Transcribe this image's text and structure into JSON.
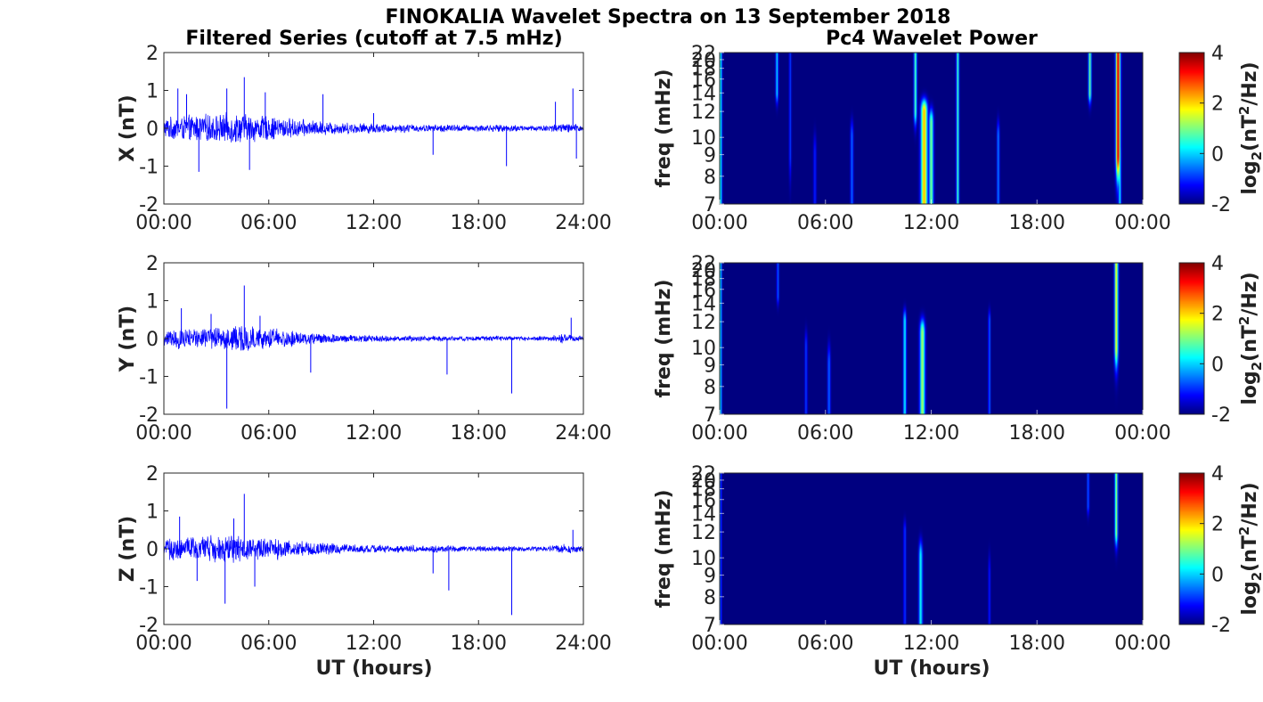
{
  "figure": {
    "title": "FINOKALIA Wavelet Spectra on 13 September 2018",
    "left_title": "Filtered Series (cutoff at 7.5 mHz)",
    "right_title": "Pc4 Wavelet Power",
    "xlabel": "UT (hours)"
  },
  "chart_data": [
    {
      "type": "line",
      "component": "X",
      "ylabel": "X (nT)",
      "ylim": [
        -2,
        2
      ],
      "yticks": [
        "2",
        "1",
        "0",
        "-1",
        "-2"
      ],
      "xlim_hours": [
        0,
        24
      ],
      "xticks": [
        "00:00",
        "06:00",
        "12:00",
        "18:00",
        "24:00"
      ],
      "line_color": "#0000ff",
      "envelope": {
        "hours": [
          0,
          1,
          2,
          3,
          4,
          5,
          6,
          7,
          8,
          9,
          10,
          11,
          12,
          13,
          14,
          15,
          16,
          17,
          18,
          19,
          20,
          21,
          22,
          23,
          24
        ],
        "amplitude_nT": [
          0.3,
          0.35,
          0.4,
          0.4,
          0.45,
          0.4,
          0.35,
          0.3,
          0.25,
          0.2,
          0.18,
          0.15,
          0.15,
          0.12,
          0.12,
          0.1,
          0.12,
          0.1,
          0.1,
          0.1,
          0.1,
          0.08,
          0.1,
          0.15,
          0.1
        ]
      },
      "spikes": [
        {
          "t": 0.8,
          "v": 1.05
        },
        {
          "t": 1.3,
          "v": 0.9
        },
        {
          "t": 2.0,
          "v": -1.15
        },
        {
          "t": 3.6,
          "v": 1.05
        },
        {
          "t": 4.6,
          "v": 1.35
        },
        {
          "t": 4.9,
          "v": -1.1
        },
        {
          "t": 5.8,
          "v": 0.95
        },
        {
          "t": 9.1,
          "v": 0.9
        },
        {
          "t": 12.0,
          "v": 0.4
        },
        {
          "t": 15.4,
          "v": -0.7
        },
        {
          "t": 19.6,
          "v": -1.0
        },
        {
          "t": 22.4,
          "v": 0.7
        },
        {
          "t": 23.4,
          "v": 1.05
        },
        {
          "t": 23.6,
          "v": -0.8
        }
      ]
    },
    {
      "type": "line",
      "component": "Y",
      "ylabel": "Y (nT)",
      "ylim": [
        -2,
        2
      ],
      "yticks": [
        "2",
        "1",
        "0",
        "-1",
        "-2"
      ],
      "xlim_hours": [
        0,
        24
      ],
      "xticks": [
        "00:00",
        "06:00",
        "12:00",
        "18:00",
        "24:00"
      ],
      "line_color": "#0000ff",
      "envelope": {
        "hours": [
          0,
          1,
          2,
          3,
          4,
          5,
          6,
          7,
          8,
          9,
          10,
          11,
          12,
          13,
          14,
          15,
          16,
          17,
          18,
          19,
          20,
          21,
          22,
          23,
          24
        ],
        "amplitude_nT": [
          0.25,
          0.3,
          0.3,
          0.35,
          0.4,
          0.35,
          0.3,
          0.25,
          0.2,
          0.15,
          0.12,
          0.1,
          0.1,
          0.08,
          0.08,
          0.08,
          0.08,
          0.07,
          0.07,
          0.07,
          0.07,
          0.06,
          0.07,
          0.15,
          0.06
        ]
      },
      "spikes": [
        {
          "t": 1.0,
          "v": 0.8
        },
        {
          "t": 2.7,
          "v": 0.65
        },
        {
          "t": 3.6,
          "v": -1.85
        },
        {
          "t": 4.6,
          "v": 1.4
        },
        {
          "t": 5.5,
          "v": 0.6
        },
        {
          "t": 8.4,
          "v": -0.9
        },
        {
          "t": 16.2,
          "v": -0.95
        },
        {
          "t": 19.9,
          "v": -1.45
        },
        {
          "t": 23.3,
          "v": 0.55
        }
      ]
    },
    {
      "type": "line",
      "component": "Z",
      "ylabel": "Z (nT)",
      "ylim": [
        -2,
        2
      ],
      "yticks": [
        "2",
        "1",
        "0",
        "-1",
        "-2"
      ],
      "xlim_hours": [
        0,
        24
      ],
      "xticks": [
        "00:00",
        "06:00",
        "12:00",
        "18:00",
        "24:00"
      ],
      "line_color": "#0000ff",
      "envelope": {
        "hours": [
          0,
          1,
          2,
          3,
          4,
          5,
          6,
          7,
          8,
          9,
          10,
          11,
          12,
          13,
          14,
          15,
          16,
          17,
          18,
          19,
          20,
          21,
          22,
          23,
          24
        ],
        "amplitude_nT": [
          0.3,
          0.35,
          0.35,
          0.4,
          0.4,
          0.35,
          0.3,
          0.28,
          0.22,
          0.18,
          0.15,
          0.12,
          0.12,
          0.1,
          0.1,
          0.1,
          0.1,
          0.08,
          0.08,
          0.08,
          0.08,
          0.07,
          0.08,
          0.15,
          0.07
        ]
      },
      "spikes": [
        {
          "t": 0.9,
          "v": 0.85
        },
        {
          "t": 1.9,
          "v": -0.85
        },
        {
          "t": 3.5,
          "v": -1.45
        },
        {
          "t": 4.0,
          "v": 0.8
        },
        {
          "t": 4.6,
          "v": 1.45
        },
        {
          "t": 5.2,
          "v": -1.0
        },
        {
          "t": 15.4,
          "v": -0.65
        },
        {
          "t": 16.3,
          "v": -1.1
        },
        {
          "t": 19.9,
          "v": -1.75
        },
        {
          "t": 23.4,
          "v": 0.5
        }
      ]
    },
    {
      "type": "heatmap",
      "component": "X",
      "ylabel": "freq (mHz)",
      "yticks": [
        "22",
        "20",
        "18",
        "16",
        "14",
        "12",
        "10",
        "9",
        "8",
        "7"
      ],
      "yticks_mHz": [
        22,
        20,
        18,
        16,
        14,
        12,
        10,
        9,
        8,
        7
      ],
      "ylim_mHz": [
        7,
        22
      ],
      "yscale": "reciprocal (period-linear)",
      "xlim_hours": [
        0,
        24
      ],
      "xticks": [
        "00:00",
        "06:00",
        "12:00",
        "18:00",
        "00:00"
      ],
      "colormap": "jet",
      "clim": [
        -2,
        4
      ],
      "colorbar_ticks": [
        "4",
        "2",
        "0",
        "-2"
      ],
      "colorbar_label": "log2(nT2/Hz)",
      "background_level": -2,
      "features": [
        {
          "t": 0.05,
          "level": 0.5,
          "f_lo": 7,
          "f_hi": 22,
          "w": 0.08
        },
        {
          "t": 3.25,
          "level": 0.3,
          "f_lo": 14,
          "f_hi": 22,
          "w": 0.07
        },
        {
          "t": 4.0,
          "level": -0.8,
          "f_lo": 9,
          "f_hi": 22,
          "w": 0.06
        },
        {
          "t": 5.4,
          "level": -1.0,
          "f_lo": 7,
          "f_hi": 9,
          "w": 0.08
        },
        {
          "t": 7.5,
          "level": -0.5,
          "f_lo": 7,
          "f_hi": 10,
          "w": 0.08
        },
        {
          "t": 11.1,
          "level": 1.0,
          "f_lo": 12,
          "f_hi": 22,
          "w": 0.08
        },
        {
          "t": 11.6,
          "level": 2.5,
          "f_lo": 7,
          "f_hi": 12,
          "w": 0.18
        },
        {
          "t": 12.0,
          "level": 1.2,
          "f_lo": 7,
          "f_hi": 11,
          "w": 0.12
        },
        {
          "t": 13.5,
          "level": 1.0,
          "f_lo": 7,
          "f_hi": 22,
          "w": 0.07
        },
        {
          "t": 15.8,
          "level": -0.3,
          "f_lo": 7,
          "f_hi": 10,
          "w": 0.07
        },
        {
          "t": 21.0,
          "level": 1.2,
          "f_lo": 14,
          "f_hi": 22,
          "w": 0.08
        },
        {
          "t": 22.6,
          "level": 4.0,
          "f_lo": 9,
          "f_hi": 22,
          "w": 0.12
        },
        {
          "t": 22.7,
          "level": 0.5,
          "f_lo": 7,
          "f_hi": 9,
          "w": 0.07
        }
      ]
    },
    {
      "type": "heatmap",
      "component": "Y",
      "ylabel": "freq (mHz)",
      "yticks": [
        "22",
        "20",
        "18",
        "16",
        "14",
        "12",
        "10",
        "9",
        "8",
        "7"
      ],
      "yticks_mHz": [
        22,
        20,
        18,
        16,
        14,
        12,
        10,
        9,
        8,
        7
      ],
      "ylim_mHz": [
        7,
        22
      ],
      "yscale": "reciprocal (period-linear)",
      "xlim_hours": [
        0,
        24
      ],
      "xticks": [
        "00:00",
        "06:00",
        "12:00",
        "18:00",
        "00:00"
      ],
      "colormap": "jet",
      "clim": [
        -2,
        4
      ],
      "colorbar_ticks": [
        "4",
        "2",
        "0",
        "-2"
      ],
      "colorbar_label": "log2(nT2/Hz)",
      "background_level": -2,
      "features": [
        {
          "t": 0.05,
          "level": 0.3,
          "f_lo": 7,
          "f_hi": 22,
          "w": 0.07
        },
        {
          "t": 3.3,
          "level": -0.5,
          "f_lo": 15,
          "f_hi": 22,
          "w": 0.06
        },
        {
          "t": 4.9,
          "level": -0.8,
          "f_lo": 7,
          "f_hi": 10,
          "w": 0.07
        },
        {
          "t": 6.2,
          "level": -0.5,
          "f_lo": 7,
          "f_hi": 9,
          "w": 0.08
        },
        {
          "t": 10.5,
          "level": 0.5,
          "f_lo": 7,
          "f_hi": 12,
          "w": 0.08
        },
        {
          "t": 11.5,
          "level": 1.5,
          "f_lo": 7,
          "f_hi": 11,
          "w": 0.14
        },
        {
          "t": 15.3,
          "level": -0.5,
          "f_lo": 7,
          "f_hi": 12,
          "w": 0.06
        },
        {
          "t": 22.5,
          "level": 2.0,
          "f_lo": 10,
          "f_hi": 22,
          "w": 0.1
        }
      ]
    },
    {
      "type": "heatmap",
      "component": "Z",
      "ylabel": "freq (mHz)",
      "yticks": [
        "22",
        "20",
        "18",
        "16",
        "14",
        "12",
        "10",
        "9",
        "8",
        "7"
      ],
      "yticks_mHz": [
        22,
        20,
        18,
        16,
        14,
        12,
        10,
        9,
        8,
        7
      ],
      "ylim_mHz": [
        7,
        22
      ],
      "yscale": "reciprocal (period-linear)",
      "xlim_hours": [
        0,
        24
      ],
      "xticks": [
        "00:00",
        "06:00",
        "12:00",
        "18:00",
        "00:00"
      ],
      "colormap": "jet",
      "clim": [
        -2,
        4
      ],
      "colorbar_ticks": [
        "4",
        "2",
        "0",
        "-2"
      ],
      "colorbar_label": "log2(nT2/Hz)",
      "background_level": -2,
      "features": [
        {
          "t": 0.05,
          "level": -0.5,
          "f_lo": 7,
          "f_hi": 22,
          "w": 0.06
        },
        {
          "t": 10.5,
          "level": -0.8,
          "f_lo": 7,
          "f_hi": 12,
          "w": 0.07
        },
        {
          "t": 11.4,
          "level": 0.5,
          "f_lo": 7,
          "f_hi": 10,
          "w": 0.1
        },
        {
          "t": 15.3,
          "level": -1.0,
          "f_lo": 7,
          "f_hi": 9,
          "w": 0.06
        },
        {
          "t": 20.9,
          "level": -0.5,
          "f_lo": 15,
          "f_hi": 22,
          "w": 0.06
        },
        {
          "t": 22.5,
          "level": 1.5,
          "f_lo": 12,
          "f_hi": 22,
          "w": 0.08
        }
      ]
    }
  ]
}
